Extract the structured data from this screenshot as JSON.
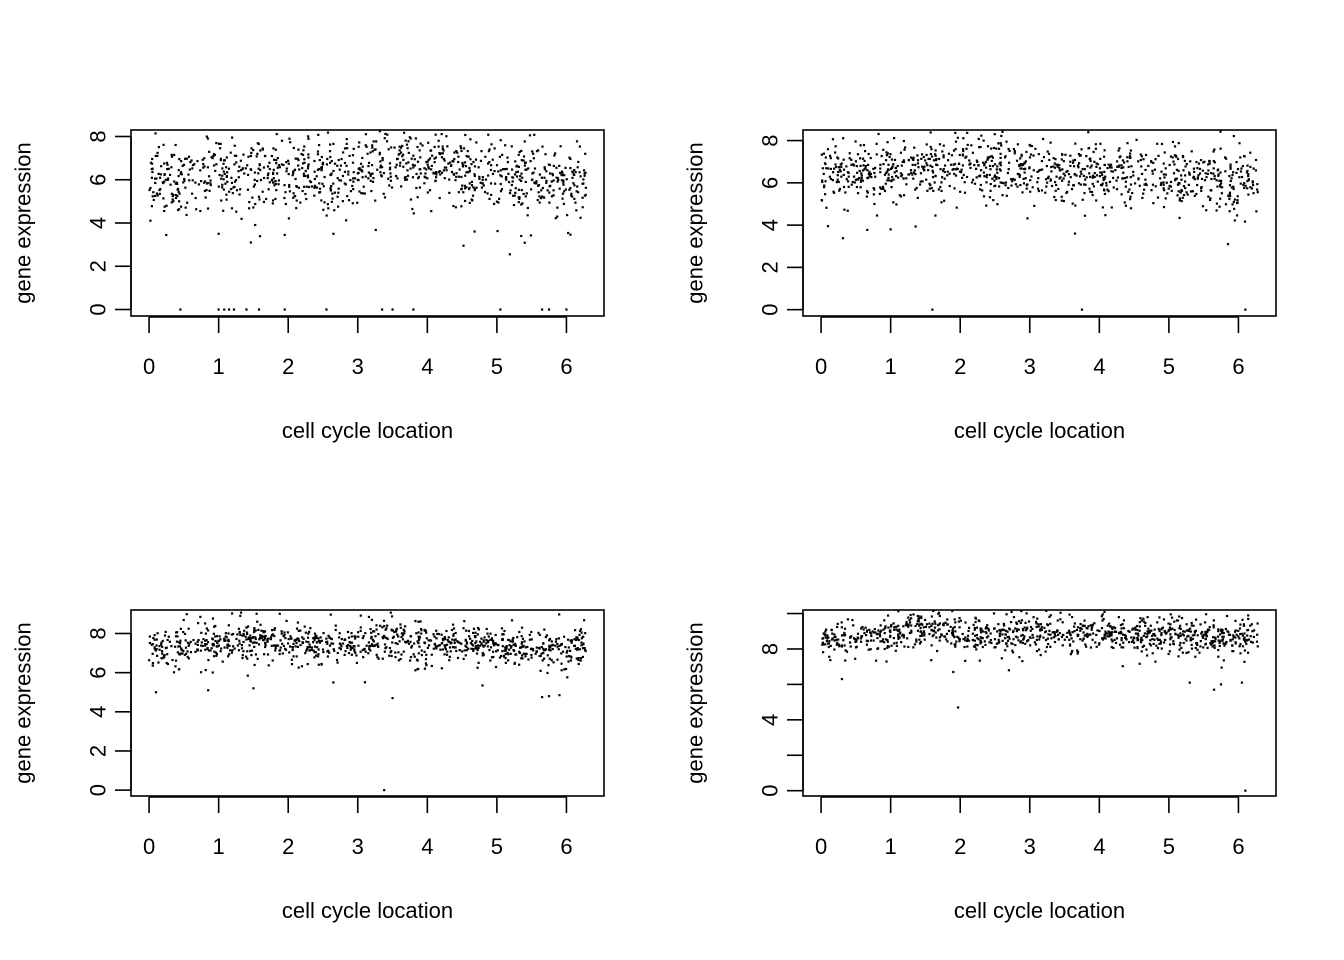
{
  "chart_data": [
    {
      "type": "scatter",
      "xlabel": "cell cycle location",
      "ylabel": "gene expression",
      "xlim": [
        -0.26,
        6.54
      ],
      "ylim": [
        -0.3,
        8.3
      ],
      "xticks": [
        0,
        1,
        2,
        3,
        4,
        5,
        6
      ],
      "yticks": [
        0,
        2,
        4,
        6,
        8
      ],
      "yticks_labeled": [
        0,
        2,
        4,
        6,
        8
      ],
      "n_points": 1000,
      "baseline": [
        [
          0.0,
          6.1
        ],
        [
          0.5,
          5.8
        ],
        [
          1.0,
          6.3
        ],
        [
          1.5,
          6.2
        ],
        [
          2.0,
          6.2
        ],
        [
          2.5,
          6.1
        ],
        [
          3.0,
          6.4
        ],
        [
          3.5,
          6.8
        ],
        [
          4.0,
          6.7
        ],
        [
          4.5,
          6.4
        ],
        [
          5.0,
          6.2
        ],
        [
          5.5,
          6.0
        ],
        [
          6.0,
          6.0
        ],
        [
          6.28,
          6.1
        ]
      ],
      "spread": 0.9,
      "zeros_x": [
        0.45,
        1.0,
        1.08,
        1.15,
        1.22,
        1.4,
        1.58,
        1.95,
        2.55,
        3.35,
        3.5,
        3.8,
        5.05,
        5.65,
        5.75,
        6.0
      ],
      "outliers": [
        [
          4.52,
          2.95
        ],
        [
          1.0,
          3.5
        ],
        [
          1.95,
          3.45
        ],
        [
          5.35,
          3.4
        ],
        [
          2.65,
          3.5
        ]
      ]
    },
    {
      "type": "scatter",
      "xlabel": "cell cycle location",
      "ylabel": "gene expression",
      "xlim": [
        -0.26,
        6.54
      ],
      "ylim": [
        -0.3,
        8.5
      ],
      "xticks": [
        0,
        1,
        2,
        3,
        4,
        5,
        6
      ],
      "yticks": [
        0,
        2,
        4,
        6,
        8
      ],
      "yticks_labeled": [
        0,
        2,
        4,
        6,
        8
      ],
      "n_points": 1000,
      "baseline": [
        [
          0.0,
          6.5
        ],
        [
          0.5,
          6.3
        ],
        [
          1.0,
          6.6
        ],
        [
          1.5,
          6.7
        ],
        [
          2.0,
          6.7
        ],
        [
          2.5,
          6.6
        ],
        [
          3.0,
          6.7
        ],
        [
          3.5,
          6.5
        ],
        [
          4.0,
          6.4
        ],
        [
          4.5,
          6.3
        ],
        [
          5.0,
          6.2
        ],
        [
          5.5,
          6.1
        ],
        [
          6.0,
          6.0
        ],
        [
          6.28,
          6.2
        ]
      ],
      "spread": 0.8,
      "zeros_x": [
        1.6,
        3.75,
        6.1
      ],
      "outliers": [
        [
          5.85,
          3.1
        ],
        [
          3.65,
          3.6
        ],
        [
          0.1,
          3.95
        ],
        [
          1.0,
          3.8
        ]
      ]
    },
    {
      "type": "scatter",
      "xlabel": "cell cycle location",
      "ylabel": "gene expression",
      "xlim": [
        -0.26,
        6.54
      ],
      "ylim": [
        -0.3,
        9.2
      ],
      "xticks": [
        0,
        1,
        2,
        3,
        4,
        5,
        6
      ],
      "yticks": [
        0,
        2,
        4,
        6,
        8
      ],
      "yticks_labeled": [
        0,
        2,
        4,
        6,
        8
      ],
      "n_points": 1000,
      "baseline": [
        [
          0.0,
          7.4
        ],
        [
          0.5,
          7.3
        ],
        [
          1.0,
          7.5
        ],
        [
          1.5,
          7.8
        ],
        [
          2.0,
          7.6
        ],
        [
          2.5,
          7.4
        ],
        [
          3.0,
          7.5
        ],
        [
          3.5,
          7.6
        ],
        [
          4.0,
          7.5
        ],
        [
          4.5,
          7.5
        ],
        [
          5.0,
          7.4
        ],
        [
          5.5,
          7.2
        ],
        [
          6.0,
          7.2
        ],
        [
          6.28,
          7.4
        ]
      ],
      "spread": 0.55,
      "zeros_x": [
        3.38
      ],
      "outliers": [
        [
          3.5,
          4.7
        ],
        [
          5.65,
          4.75
        ],
        [
          5.75,
          4.8
        ],
        [
          5.9,
          4.85
        ],
        [
          0.85,
          5.1
        ],
        [
          1.5,
          5.2
        ],
        [
          0.1,
          5.0
        ],
        [
          2.65,
          5.5
        ]
      ]
    },
    {
      "type": "scatter",
      "xlabel": "cell cycle location",
      "ylabel": "gene expression",
      "xlim": [
        -0.26,
        6.54
      ],
      "ylim": [
        -0.3,
        10.2
      ],
      "xticks": [
        0,
        1,
        2,
        3,
        4,
        5,
        6
      ],
      "yticks": [
        0,
        2,
        4,
        6,
        8,
        10
      ],
      "yticks_labeled": [
        0,
        4,
        8
      ],
      "n_points": 1000,
      "baseline": [
        [
          0.0,
          8.7
        ],
        [
          0.5,
          8.6
        ],
        [
          1.0,
          8.9
        ],
        [
          1.5,
          9.1
        ],
        [
          2.0,
          8.8
        ],
        [
          2.5,
          8.8
        ],
        [
          3.0,
          8.9
        ],
        [
          3.5,
          9.0
        ],
        [
          4.0,
          8.9
        ],
        [
          4.5,
          8.7
        ],
        [
          5.0,
          8.8
        ],
        [
          5.5,
          8.7
        ],
        [
          6.0,
          8.7
        ],
        [
          6.28,
          8.8
        ]
      ],
      "spread": 0.55,
      "zeros_x": [
        6.1
      ],
      "outliers": [
        [
          1.97,
          4.7
        ],
        [
          5.65,
          5.7
        ],
        [
          5.75,
          6.0
        ],
        [
          6.05,
          6.1
        ],
        [
          0.3,
          6.3
        ],
        [
          5.3,
          6.1
        ],
        [
          1.9,
          6.7
        ],
        [
          2.7,
          6.8
        ]
      ]
    }
  ]
}
